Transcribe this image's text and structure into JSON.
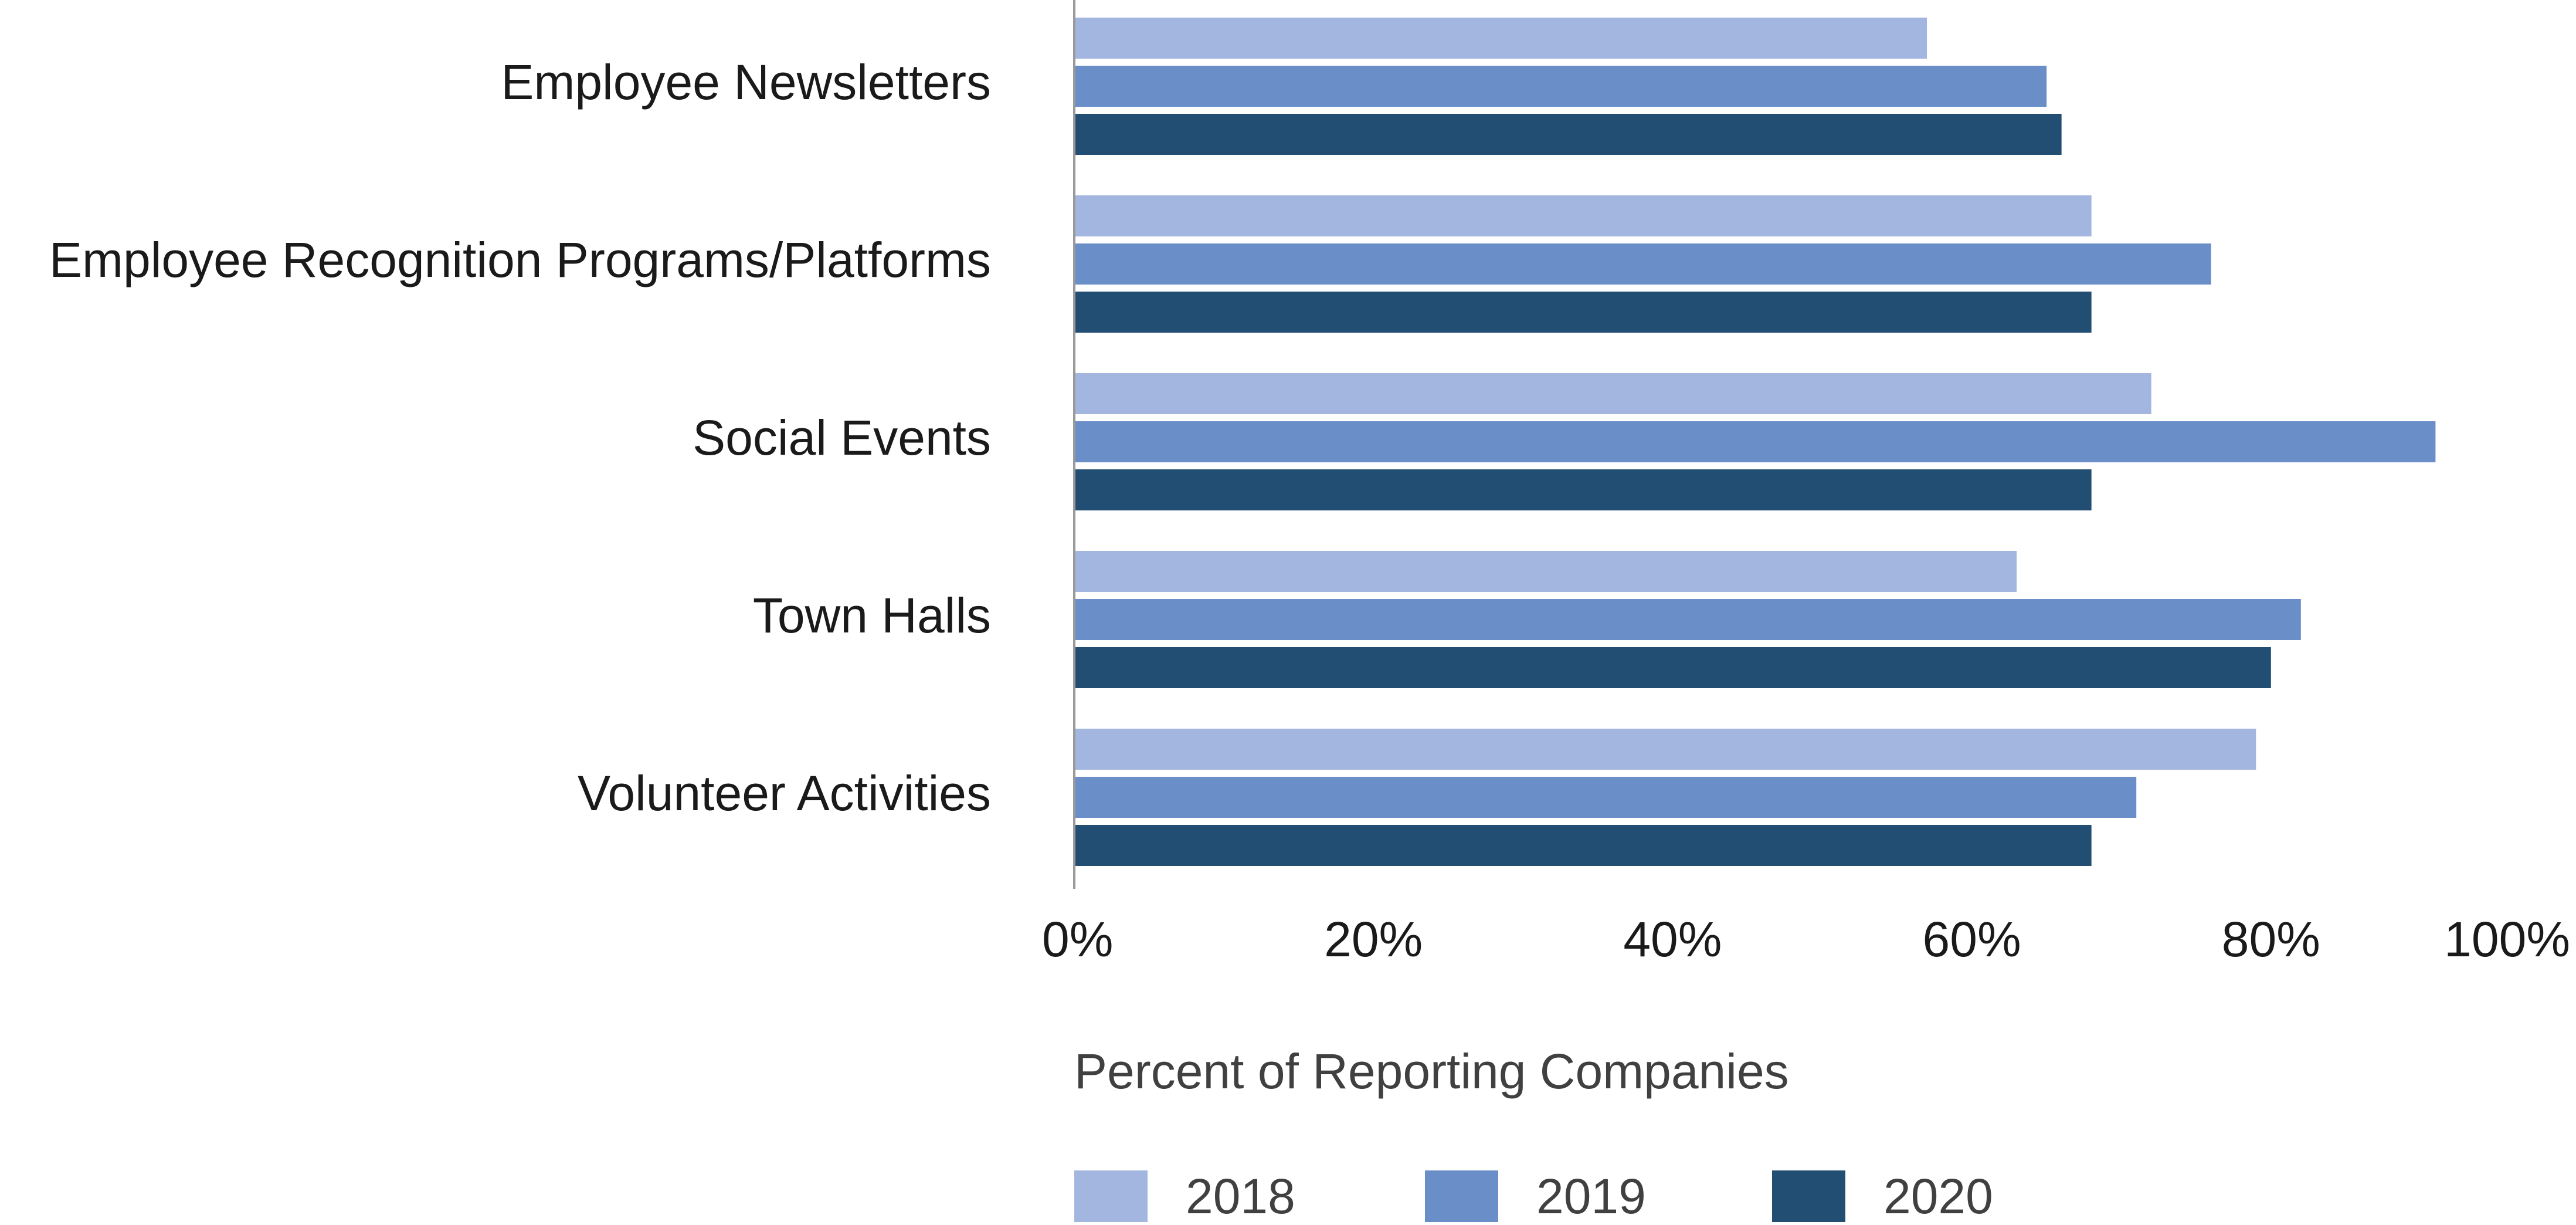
{
  "chart_data": {
    "type": "bar",
    "orientation": "horizontal",
    "categories": [
      "Employee Newsletters",
      "Employee Recognition Programs/Platforms",
      "Social Events",
      "Town Halls",
      "Volunteer Activities"
    ],
    "series": [
      {
        "name": "2018",
        "color": "#a3b6df",
        "values": [
          57,
          68,
          72,
          63,
          79
        ]
      },
      {
        "name": "2019",
        "color": "#6a8fc8",
        "values": [
          65,
          76,
          91,
          82,
          71
        ]
      },
      {
        "name": "2020",
        "color": "#234e74",
        "values": [
          66,
          68,
          68,
          80,
          68
        ]
      }
    ],
    "xlim": [
      0,
      100
    ],
    "xticks": [
      "0%",
      "20%",
      "40%",
      "60%",
      "80%",
      "100%"
    ],
    "xlabel": "Percent of Reporting Companies",
    "legend_position": "bottom",
    "grid": false
  }
}
